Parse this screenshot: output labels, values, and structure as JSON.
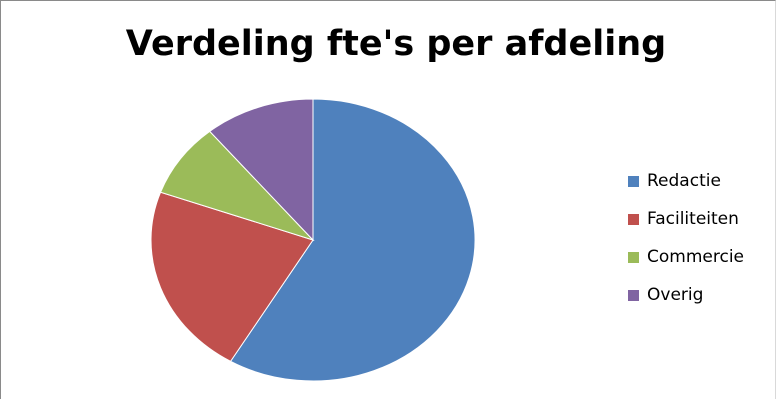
{
  "chart_data": {
    "type": "pie",
    "title": "Verdeling fte's per afdeling",
    "categories": [
      "Redactie",
      "Faciliteiten",
      "Commercie",
      "Overig"
    ],
    "values": [
      58.5,
      22,
      8.5,
      11
    ],
    "colors": [
      "#4f81bd",
      "#c0504d",
      "#9bbb59",
      "#8064a2"
    ],
    "start_angle_deg": 0,
    "direction": "clockwise",
    "legend_position": "right"
  }
}
